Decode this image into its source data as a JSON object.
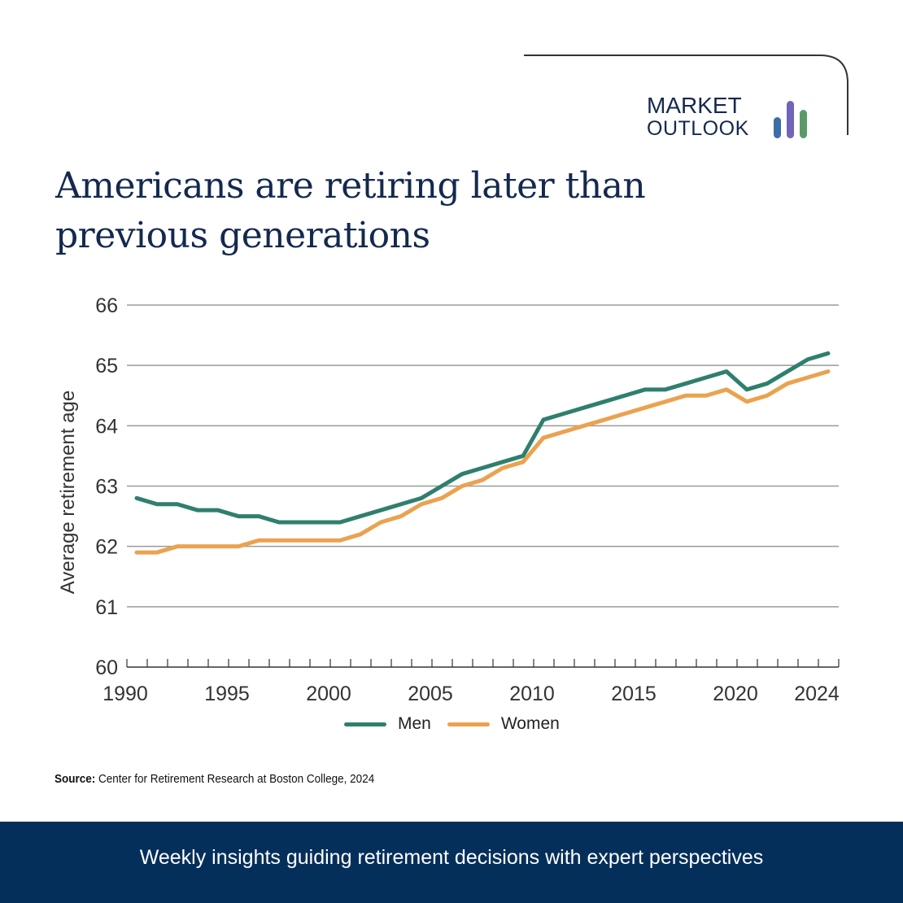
{
  "brand": {
    "line1": "MARKET",
    "line2": "OUTLOOK",
    "bar_colors": [
      "#3b6ea5",
      "#7065b8",
      "#5a9a6a"
    ]
  },
  "title": "Americans are retiring later than previous generations",
  "source": {
    "label": "Source:",
    "text": " Center for Retirement Research at Boston College, 2024"
  },
  "footer": {
    "text": "Weekly insights guiding retirement decisions with expert perspectives",
    "background": "#052f5b"
  },
  "chart_data": {
    "type": "line",
    "title": "Americans are retiring later than previous generations",
    "xlabel": "",
    "ylabel": "Average retirement age",
    "x": [
      1990,
      1991,
      1992,
      1993,
      1994,
      1995,
      1996,
      1997,
      1998,
      1999,
      2000,
      2001,
      2002,
      2003,
      2004,
      2005,
      2006,
      2007,
      2008,
      2009,
      2010,
      2011,
      2012,
      2013,
      2014,
      2015,
      2016,
      2017,
      2018,
      2019,
      2020,
      2021,
      2022,
      2023,
      2024
    ],
    "xticks": [
      1990,
      1995,
      2000,
      2005,
      2010,
      2015,
      2020,
      2024
    ],
    "ylim": [
      60,
      66
    ],
    "yticks": [
      60,
      61,
      62,
      63,
      64,
      65,
      66
    ],
    "grid": true,
    "legend_position": "bottom",
    "series": [
      {
        "name": "Men",
        "color": "#2f7f6e",
        "values": [
          62.8,
          62.7,
          62.7,
          62.6,
          62.6,
          62.5,
          62.5,
          62.4,
          62.4,
          62.4,
          62.4,
          62.5,
          62.6,
          62.7,
          62.8,
          63.0,
          63.2,
          63.3,
          63.4,
          63.5,
          64.1,
          64.2,
          64.3,
          64.4,
          64.5,
          64.6,
          64.6,
          64.7,
          64.8,
          64.9,
          64.6,
          64.7,
          64.9,
          65.1,
          65.2
        ]
      },
      {
        "name": "Women",
        "color": "#eba24f",
        "values": [
          61.9,
          61.9,
          62.0,
          62.0,
          62.0,
          62.0,
          62.1,
          62.1,
          62.1,
          62.1,
          62.1,
          62.2,
          62.4,
          62.5,
          62.7,
          62.8,
          63.0,
          63.1,
          63.3,
          63.4,
          63.8,
          63.9,
          64.0,
          64.1,
          64.2,
          64.3,
          64.4,
          64.5,
          64.5,
          64.6,
          64.4,
          64.5,
          64.7,
          64.8,
          64.9
        ]
      }
    ],
    "source": "Center for Retirement Research at Boston College, 2024"
  }
}
